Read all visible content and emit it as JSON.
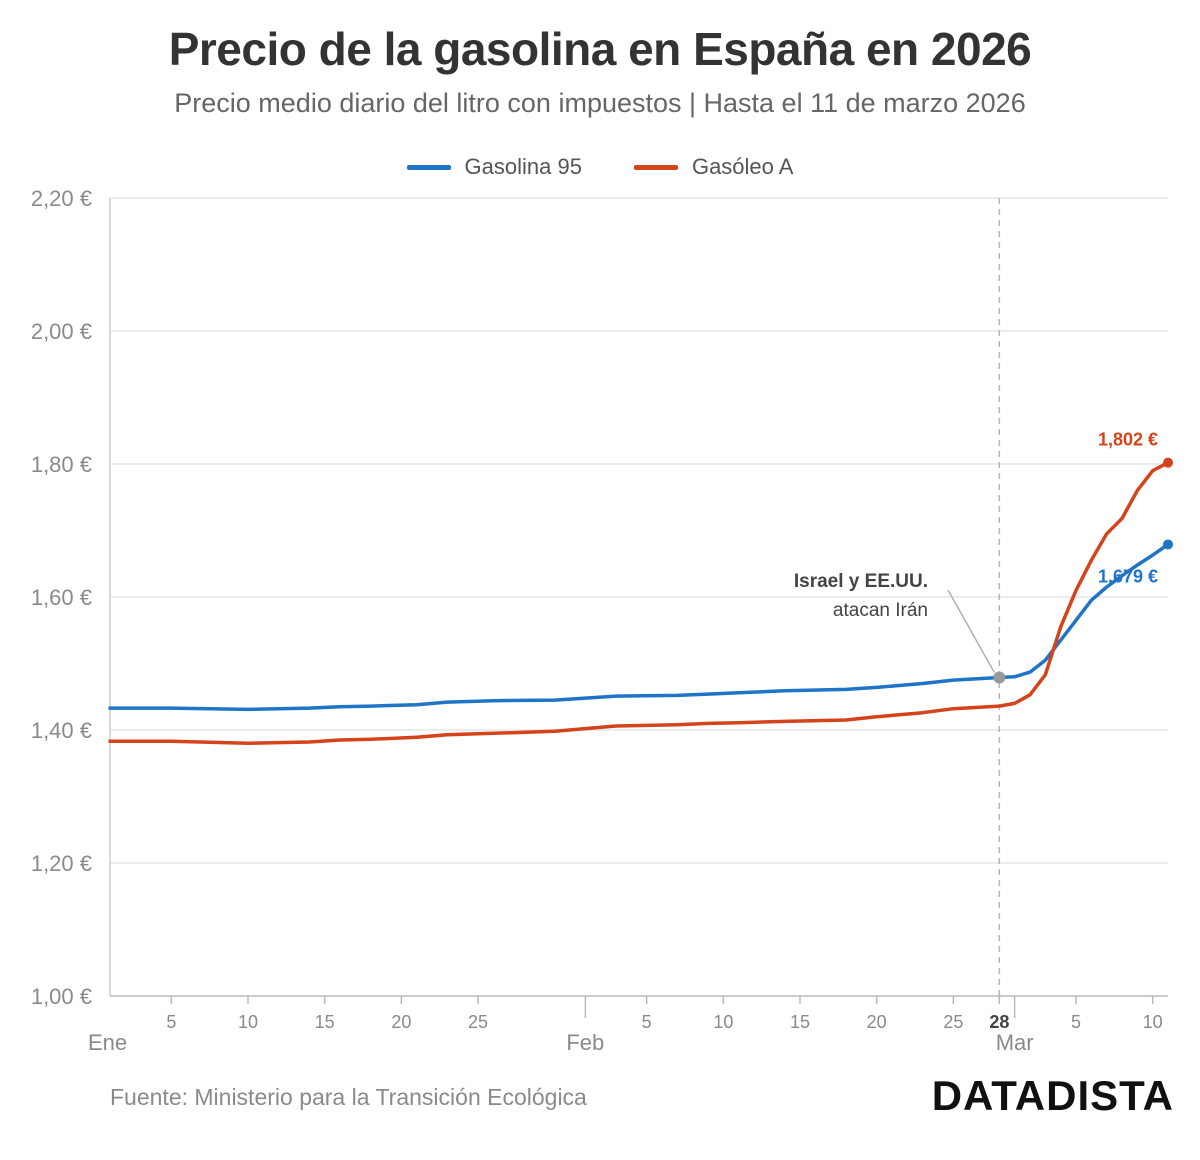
{
  "title": "Precio de la gasolina en España en 2026",
  "subtitle": "Precio medio diario del litro con impuestos | Hasta el 11 de marzo 2026",
  "legend": [
    {
      "label": "Gasolina 95",
      "color": "#1f74c8"
    },
    {
      "label": "Gasóleo A",
      "color": "#d4431a"
    }
  ],
  "source": "Fuente: Ministerio para la Transición Ecológica",
  "brand": "DATADISTA",
  "chart_data": {
    "type": "line",
    "xlabel": "",
    "ylabel": "",
    "ylim": [
      1.0,
      2.2
    ],
    "yticks": [
      {
        "value": 1.0,
        "label": "1,00 €"
      },
      {
        "value": 1.2,
        "label": "1,20 €"
      },
      {
        "value": 1.4,
        "label": "1,40 €"
      },
      {
        "value": 1.6,
        "label": "1,60 €"
      },
      {
        "value": 1.8,
        "label": "1,80 €"
      },
      {
        "value": 2.0,
        "label": "2,00 €"
      },
      {
        "value": 2.2,
        "label": "2,20 €"
      }
    ],
    "xlim": [
      "2026-01-01",
      "2026-03-11"
    ],
    "xticks": [
      {
        "date": "2026-01-05",
        "label": "5"
      },
      {
        "date": "2026-01-10",
        "label": "10"
      },
      {
        "date": "2026-01-15",
        "label": "15"
      },
      {
        "date": "2026-01-20",
        "label": "20"
      },
      {
        "date": "2026-01-25",
        "label": "25"
      },
      {
        "date": "2026-02-05",
        "label": "5"
      },
      {
        "date": "2026-02-10",
        "label": "10"
      },
      {
        "date": "2026-02-15",
        "label": "15"
      },
      {
        "date": "2026-02-20",
        "label": "20"
      },
      {
        "date": "2026-02-25",
        "label": "25"
      },
      {
        "date": "2026-02-28",
        "label": "28",
        "bold": true
      },
      {
        "date": "2026-03-05",
        "label": "5"
      },
      {
        "date": "2026-03-10",
        "label": "10"
      }
    ],
    "month_labels": [
      {
        "date": "2026-01-01",
        "label": "Ene"
      },
      {
        "date": "2026-02-01",
        "label": "Feb"
      },
      {
        "date": "2026-03-01",
        "label": "Mar"
      }
    ],
    "grid": "horizontal",
    "series": [
      {
        "name": "Gasolina 95",
        "color": "#1f74c8",
        "end_label": "1,679 €",
        "points": [
          [
            "2026-01-01",
            1.433
          ],
          [
            "2026-01-05",
            1.433
          ],
          [
            "2026-01-10",
            1.431
          ],
          [
            "2026-01-14",
            1.433
          ],
          [
            "2026-01-16",
            1.435
          ],
          [
            "2026-01-18",
            1.436
          ],
          [
            "2026-01-21",
            1.438
          ],
          [
            "2026-01-23",
            1.442
          ],
          [
            "2026-01-26",
            1.444
          ],
          [
            "2026-01-30",
            1.445
          ],
          [
            "2026-02-03",
            1.451
          ],
          [
            "2026-02-07",
            1.452
          ],
          [
            "2026-02-09",
            1.454
          ],
          [
            "2026-02-11",
            1.456
          ],
          [
            "2026-02-14",
            1.459
          ],
          [
            "2026-02-18",
            1.461
          ],
          [
            "2026-02-20",
            1.464
          ],
          [
            "2026-02-21",
            1.466
          ],
          [
            "2026-02-23",
            1.47
          ],
          [
            "2026-02-25",
            1.475
          ],
          [
            "2026-02-28",
            1.479
          ],
          [
            "2026-03-01",
            1.48
          ],
          [
            "2026-03-02",
            1.487
          ],
          [
            "2026-03-03",
            1.505
          ],
          [
            "2026-03-04",
            1.535
          ],
          [
            "2026-03-05",
            1.565
          ],
          [
            "2026-03-06",
            1.595
          ],
          [
            "2026-03-07",
            1.615
          ],
          [
            "2026-03-08",
            1.632
          ],
          [
            "2026-03-09",
            1.648
          ],
          [
            "2026-03-10",
            1.663
          ],
          [
            "2026-03-11",
            1.679
          ]
        ]
      },
      {
        "name": "Gasóleo A",
        "color": "#d4431a",
        "end_label": "1,802 €",
        "points": [
          [
            "2026-01-01",
            1.383
          ],
          [
            "2026-01-05",
            1.383
          ],
          [
            "2026-01-10",
            1.38
          ],
          [
            "2026-01-14",
            1.382
          ],
          [
            "2026-01-16",
            1.385
          ],
          [
            "2026-01-18",
            1.386
          ],
          [
            "2026-01-21",
            1.389
          ],
          [
            "2026-01-23",
            1.393
          ],
          [
            "2026-01-26",
            1.395
          ],
          [
            "2026-01-30",
            1.398
          ],
          [
            "2026-02-03",
            1.406
          ],
          [
            "2026-02-07",
            1.408
          ],
          [
            "2026-02-09",
            1.41
          ],
          [
            "2026-02-11",
            1.411
          ],
          [
            "2026-02-14",
            1.413
          ],
          [
            "2026-02-18",
            1.415
          ],
          [
            "2026-02-20",
            1.42
          ],
          [
            "2026-02-21",
            1.422
          ],
          [
            "2026-02-23",
            1.426
          ],
          [
            "2026-02-25",
            1.432
          ],
          [
            "2026-02-28",
            1.436
          ],
          [
            "2026-03-01",
            1.44
          ],
          [
            "2026-03-02",
            1.453
          ],
          [
            "2026-03-03",
            1.483
          ],
          [
            "2026-03-04",
            1.555
          ],
          [
            "2026-03-05",
            1.61
          ],
          [
            "2026-03-06",
            1.655
          ],
          [
            "2026-03-07",
            1.695
          ],
          [
            "2026-03-08",
            1.718
          ],
          [
            "2026-03-09",
            1.76
          ],
          [
            "2026-03-10",
            1.79
          ],
          [
            "2026-03-11",
            1.802
          ]
        ]
      }
    ],
    "annotation": {
      "date": "2026-02-28",
      "value": 1.479,
      "line1": "Israel y EE.UU.",
      "line2": "atacan Irán",
      "color": "#999999"
    }
  }
}
